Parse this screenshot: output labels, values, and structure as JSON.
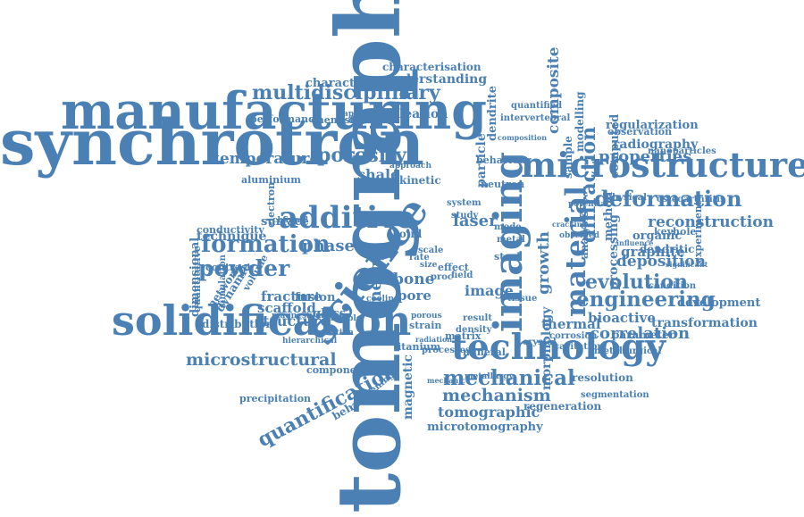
{
  "color": "#4a80b4",
  "words": [
    "tomography",
    "synchrotron",
    "manufacturing",
    "microstructure",
    "solidification",
    "technology",
    "imaging",
    "science",
    "additive",
    "multidisciplinary",
    "deformation",
    "formation",
    "material",
    "porosity",
    "powder",
    "reconstruction",
    "engineering",
    "evolution",
    "mechanical",
    "mechanism",
    "quantification",
    "microstructural",
    "deposition",
    "diffraction",
    "growth",
    "composite",
    "phase",
    "shale",
    "temperature",
    "properties",
    "understanding",
    "characterisation",
    "characterization",
    "nucleation",
    "performance",
    "chemistry",
    "directed",
    "technique",
    "surface",
    "fracture",
    "scaffold",
    "structure",
    "energy",
    "bone",
    "pore",
    "image",
    "laser",
    "thermal",
    "correlation",
    "bioactive",
    "transformation",
    "development",
    "tomographic",
    "microtomography",
    "regeneration",
    "morphology",
    "resolution",
    "segmentation",
    "radiography",
    "regularization",
    "observation",
    "nanoparticles",
    "organic",
    "dendritic",
    "keyhole",
    "graphite",
    "osteoarthritis",
    "physical",
    "method",
    "analysis",
    "processing",
    "computed",
    "modelling",
    "sample",
    "particle",
    "dendrite",
    "quantified",
    "intervertebral",
    "neutron",
    "behaviour",
    "kinetic",
    "aluminium",
    "conductivity",
    "contrast",
    "dimensional",
    "distribution",
    "glass",
    "fusion",
    "solid",
    "effect",
    "steel",
    "metal",
    "crystal",
    "mineral",
    "matrix",
    "strain",
    "titanium",
    "component",
    "precipitation",
    "magnetic",
    "behavior",
    "parameter",
    "condition",
    "experiment",
    "electron",
    "dynamic",
    "network",
    "volume",
    "simulation",
    "quantitative",
    "density",
    "result",
    "corrosion",
    "cavitation",
    "metallurgical",
    "processes",
    "digital",
    "bubble",
    "cooling",
    "porous",
    "size",
    "rate",
    "scale",
    "field",
    "proc",
    "application",
    "approach",
    "hierarchical",
    "metallurgy",
    "mechanic",
    "composition",
    "influence",
    "significant",
    "mode",
    "tissue",
    "system",
    "study",
    "potential",
    "observed",
    "cracking",
    "radiation",
    "transition",
    "magnesium",
    "channel",
    "coarsening"
  ]
}
